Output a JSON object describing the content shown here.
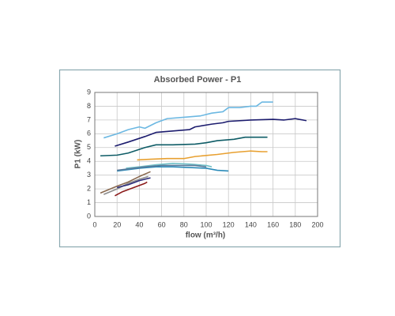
{
  "chart_data": {
    "type": "line",
    "title": "Absorbed Power - P1",
    "x_label": "flow (m³/h)",
    "y_label": "P1 (kW)",
    "xlim": [
      0,
      200
    ],
    "ylim": [
      0,
      9
    ],
    "xticks": [
      0,
      20,
      40,
      60,
      80,
      100,
      120,
      140,
      160,
      180,
      200
    ],
    "yticks": [
      0,
      1,
      2,
      3,
      4,
      5,
      6,
      7,
      8,
      9
    ],
    "grid": true,
    "series": [
      {
        "color": "#6cb8e2",
        "x": [
          8,
          20,
          30,
          40,
          45,
          55,
          65,
          80,
          95,
          105,
          115,
          120,
          130,
          140,
          145,
          150,
          160
        ],
        "values": [
          5.7,
          6.0,
          6.3,
          6.5,
          6.4,
          6.8,
          7.1,
          7.2,
          7.3,
          7.5,
          7.6,
          7.9,
          7.9,
          8.0,
          8.0,
          8.3,
          8.3
        ]
      },
      {
        "color": "#1c1c6e",
        "x": [
          18,
          30,
          45,
          55,
          70,
          85,
          90,
          105,
          115,
          120,
          140,
          160,
          170,
          180,
          190
        ],
        "values": [
          5.1,
          5.4,
          5.8,
          6.1,
          6.2,
          6.3,
          6.5,
          6.7,
          6.8,
          6.9,
          7.0,
          7.05,
          7.0,
          7.1,
          6.95
        ]
      },
      {
        "color": "#0e5c66",
        "x": [
          5,
          20,
          30,
          45,
          55,
          70,
          90,
          100,
          110,
          125,
          135,
          150,
          155
        ],
        "values": [
          4.4,
          4.45,
          4.6,
          5.0,
          5.2,
          5.2,
          5.25,
          5.35,
          5.5,
          5.6,
          5.75,
          5.75,
          5.75
        ]
      },
      {
        "color": "#e8a030",
        "x": [
          38,
          50,
          65,
          80,
          90,
          110,
          125,
          140,
          150,
          155
        ],
        "values": [
          4.1,
          4.15,
          4.2,
          4.2,
          4.35,
          4.5,
          4.65,
          4.75,
          4.7,
          4.7
        ]
      },
      {
        "color": "#2a8ab8",
        "x": [
          20,
          40,
          55,
          70,
          85,
          100,
          110,
          120
        ],
        "values": [
          3.3,
          3.5,
          3.6,
          3.6,
          3.55,
          3.5,
          3.35,
          3.3
        ]
      },
      {
        "color": "#70c0c8",
        "x": [
          28,
          40,
          55,
          70,
          85,
          100,
          105
        ],
        "values": [
          3.5,
          3.6,
          3.75,
          3.85,
          3.8,
          3.7,
          3.6
        ]
      },
      {
        "color": "#5a7a9a",
        "x": [
          20,
          30,
          45,
          60,
          75,
          90,
          100
        ],
        "values": [
          3.35,
          3.45,
          3.6,
          3.7,
          3.7,
          3.7,
          3.6
        ]
      },
      {
        "color": "#8a6a50",
        "x": [
          5,
          20,
          30,
          40,
          50
        ],
        "values": [
          1.7,
          2.2,
          2.5,
          2.9,
          3.25
        ]
      },
      {
        "color": "#8c8c8c",
        "x": [
          8,
          20,
          30,
          40,
          48
        ],
        "values": [
          1.6,
          2.0,
          2.4,
          2.7,
          2.9
        ]
      },
      {
        "color": "#2a2a7a",
        "x": [
          20,
          30,
          40,
          50
        ],
        "values": [
          2.1,
          2.3,
          2.6,
          2.8
        ]
      },
      {
        "color": "#8b1a1a",
        "x": [
          18,
          25,
          35,
          45,
          47
        ],
        "values": [
          1.5,
          1.8,
          2.1,
          2.4,
          2.5
        ]
      }
    ]
  }
}
